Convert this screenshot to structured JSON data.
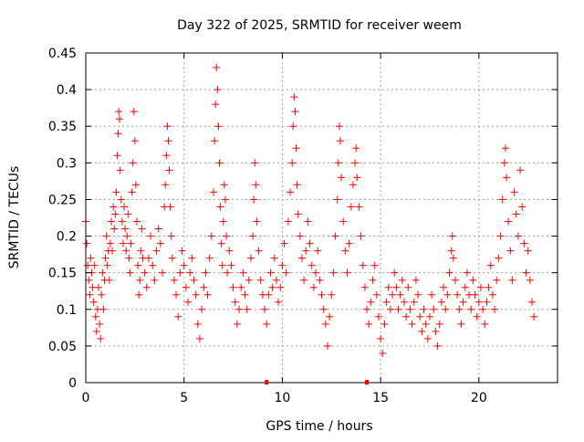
{
  "chart_data": {
    "type": "scatter",
    "title": "Day 322 of 2025, SRMTID for receiver weem",
    "xlabel": "GPS time / hours",
    "ylabel": "SRMTID / TECUs",
    "xlim": [
      0,
      24
    ],
    "ylim": [
      0,
      0.45
    ],
    "xticks": [
      0,
      5,
      10,
      15,
      20
    ],
    "xtick_labels": [
      "0",
      "5",
      "10",
      "15",
      "20"
    ],
    "yticks": [
      0,
      0.05,
      0.1,
      0.15,
      0.2,
      0.25,
      0.3,
      0.35,
      0.4,
      0.45
    ],
    "ytick_labels": [
      "0",
      "0.05",
      "0.1",
      "0.15",
      "0.2",
      "0.25",
      "0.3",
      "0.35",
      "0.4",
      "0.45"
    ],
    "grid": true,
    "marker": "+",
    "color": "#ff0000",
    "axis_markers_x": [
      9.2,
      14.3
    ],
    "series": [
      {
        "name": "SRMTID",
        "points": [
          [
            0.0,
            0.22
          ],
          [
            0.05,
            0.19
          ],
          [
            0.1,
            0.16
          ],
          [
            0.15,
            0.14
          ],
          [
            0.2,
            0.12
          ],
          [
            0.25,
            0.17
          ],
          [
            0.3,
            0.15
          ],
          [
            0.35,
            0.13
          ],
          [
            0.4,
            0.11
          ],
          [
            0.45,
            0.16
          ],
          [
            0.5,
            0.09
          ],
          [
            0.55,
            0.07
          ],
          [
            0.6,
            0.1
          ],
          [
            0.65,
            0.13
          ],
          [
            0.7,
            0.08
          ],
          [
            0.75,
            0.06
          ],
          [
            0.8,
            0.12
          ],
          [
            0.85,
            0.15
          ],
          [
            0.9,
            0.1
          ],
          [
            0.95,
            0.14
          ],
          [
            1.0,
            0.17
          ],
          [
            1.05,
            0.2
          ],
          [
            1.1,
            0.16
          ],
          [
            1.15,
            0.18
          ],
          [
            1.2,
            0.14
          ],
          [
            1.25,
            0.19
          ],
          [
            1.3,
            0.22
          ],
          [
            1.35,
            0.18
          ],
          [
            1.4,
            0.24
          ],
          [
            1.45,
            0.21
          ],
          [
            1.5,
            0.23
          ],
          [
            1.55,
            0.26
          ],
          [
            1.6,
            0.31
          ],
          [
            1.65,
            0.34
          ],
          [
            1.68,
            0.37
          ],
          [
            1.72,
            0.36
          ],
          [
            1.75,
            0.29
          ],
          [
            1.8,
            0.25
          ],
          [
            1.85,
            0.22
          ],
          [
            1.9,
            0.19
          ],
          [
            1.95,
            0.24
          ],
          [
            2.0,
            0.21
          ],
          [
            2.05,
            0.18
          ],
          [
            2.1,
            0.2
          ],
          [
            2.15,
            0.23
          ],
          [
            2.2,
            0.17
          ],
          [
            2.25,
            0.15
          ],
          [
            2.3,
            0.19
          ],
          [
            2.35,
            0.26
          ],
          [
            2.4,
            0.3
          ],
          [
            2.45,
            0.37
          ],
          [
            2.5,
            0.33
          ],
          [
            2.55,
            0.27
          ],
          [
            2.6,
            0.22
          ],
          [
            2.65,
            0.16
          ],
          [
            2.7,
            0.12
          ],
          [
            2.75,
            0.14
          ],
          [
            2.8,
            0.18
          ],
          [
            2.85,
            0.21
          ],
          [
            2.9,
            0.17
          ],
          [
            3.0,
            0.15
          ],
          [
            3.1,
            0.13
          ],
          [
            3.2,
            0.17
          ],
          [
            3.3,
            0.2
          ],
          [
            3.4,
            0.16
          ],
          [
            3.5,
            0.14
          ],
          [
            3.6,
            0.18
          ],
          [
            3.7,
            0.21
          ],
          [
            3.8,
            0.19
          ],
          [
            3.9,
            0.15
          ],
          [
            4.0,
            0.24
          ],
          [
            4.05,
            0.27
          ],
          [
            4.1,
            0.31
          ],
          [
            4.15,
            0.35
          ],
          [
            4.2,
            0.33
          ],
          [
            4.25,
            0.29
          ],
          [
            4.3,
            0.24
          ],
          [
            4.35,
            0.2
          ],
          [
            4.4,
            0.17
          ],
          [
            4.5,
            0.14
          ],
          [
            4.6,
            0.12
          ],
          [
            4.7,
            0.09
          ],
          [
            4.8,
            0.15
          ],
          [
            4.9,
            0.18
          ],
          [
            5.0,
            0.16
          ],
          [
            5.1,
            0.13
          ],
          [
            5.2,
            0.11
          ],
          [
            5.3,
            0.15
          ],
          [
            5.4,
            0.17
          ],
          [
            5.5,
            0.14
          ],
          [
            5.6,
            0.12
          ],
          [
            5.7,
            0.08
          ],
          [
            5.8,
            0.06
          ],
          [
            5.9,
            0.1
          ],
          [
            6.0,
            0.13
          ],
          [
            6.1,
            0.15
          ],
          [
            6.2,
            0.12
          ],
          [
            6.3,
            0.17
          ],
          [
            6.4,
            0.2
          ],
          [
            6.5,
            0.26
          ],
          [
            6.55,
            0.33
          ],
          [
            6.6,
            0.38
          ],
          [
            6.65,
            0.43
          ],
          [
            6.7,
            0.4
          ],
          [
            6.75,
            0.35
          ],
          [
            6.8,
            0.3
          ],
          [
            6.85,
            0.24
          ],
          [
            6.9,
            0.19
          ],
          [
            6.95,
            0.16
          ],
          [
            7.0,
            0.22
          ],
          [
            7.05,
            0.27
          ],
          [
            7.1,
            0.25
          ],
          [
            7.15,
            0.2
          ],
          [
            7.2,
            0.15
          ],
          [
            7.3,
            0.18
          ],
          [
            7.4,
            0.16
          ],
          [
            7.5,
            0.13
          ],
          [
            7.6,
            0.11
          ],
          [
            7.7,
            0.08
          ],
          [
            7.8,
            0.1
          ],
          [
            7.9,
            0.13
          ],
          [
            8.0,
            0.15
          ],
          [
            8.1,
            0.12
          ],
          [
            8.2,
            0.1
          ],
          [
            8.3,
            0.14
          ],
          [
            8.4,
            0.17
          ],
          [
            8.5,
            0.2
          ],
          [
            8.55,
            0.25
          ],
          [
            8.6,
            0.3
          ],
          [
            8.65,
            0.27
          ],
          [
            8.7,
            0.22
          ],
          [
            8.8,
            0.18
          ],
          [
            8.9,
            0.14
          ],
          [
            9.0,
            0.12
          ],
          [
            9.1,
            0.1
          ],
          [
            9.2,
            0.08
          ],
          [
            9.3,
            0.12
          ],
          [
            9.4,
            0.15
          ],
          [
            9.5,
            0.13
          ],
          [
            9.6,
            0.17
          ],
          [
            9.7,
            0.14
          ],
          [
            9.8,
            0.11
          ],
          [
            9.9,
            0.13
          ],
          [
            10.0,
            0.16
          ],
          [
            10.1,
            0.19
          ],
          [
            10.2,
            0.15
          ],
          [
            10.3,
            0.22
          ],
          [
            10.4,
            0.26
          ],
          [
            10.5,
            0.3
          ],
          [
            10.55,
            0.35
          ],
          [
            10.6,
            0.39
          ],
          [
            10.65,
            0.37
          ],
          [
            10.7,
            0.32
          ],
          [
            10.75,
            0.27
          ],
          [
            10.8,
            0.23
          ],
          [
            10.9,
            0.2
          ],
          [
            11.0,
            0.17
          ],
          [
            11.1,
            0.14
          ],
          [
            11.2,
            0.18
          ],
          [
            11.3,
            0.22
          ],
          [
            11.4,
            0.19
          ],
          [
            11.5,
            0.16
          ],
          [
            11.6,
            0.13
          ],
          [
            11.7,
            0.15
          ],
          [
            11.8,
            0.18
          ],
          [
            11.9,
            0.14
          ],
          [
            12.0,
            0.12
          ],
          [
            12.1,
            0.1
          ],
          [
            12.2,
            0.08
          ],
          [
            12.3,
            0.05
          ],
          [
            12.4,
            0.09
          ],
          [
            12.5,
            0.12
          ],
          [
            12.6,
            0.15
          ],
          [
            12.7,
            0.2
          ],
          [
            12.8,
            0.25
          ],
          [
            12.85,
            0.3
          ],
          [
            12.9,
            0.35
          ],
          [
            12.95,
            0.33
          ],
          [
            13.0,
            0.28
          ],
          [
            13.1,
            0.22
          ],
          [
            13.2,
            0.18
          ],
          [
            13.3,
            0.15
          ],
          [
            13.4,
            0.19
          ],
          [
            13.5,
            0.24
          ],
          [
            13.6,
            0.27
          ],
          [
            13.7,
            0.3
          ],
          [
            13.75,
            0.32
          ],
          [
            13.8,
            0.28
          ],
          [
            13.9,
            0.24
          ],
          [
            14.0,
            0.2
          ],
          [
            14.1,
            0.16
          ],
          [
            14.2,
            0.13
          ],
          [
            14.3,
            0.1
          ],
          [
            14.4,
            0.08
          ],
          [
            14.5,
            0.11
          ],
          [
            14.6,
            0.14
          ],
          [
            14.7,
            0.16
          ],
          [
            14.8,
            0.12
          ],
          [
            14.9,
            0.09
          ],
          [
            15.0,
            0.06
          ],
          [
            15.1,
            0.04
          ],
          [
            15.2,
            0.08
          ],
          [
            15.3,
            0.11
          ],
          [
            15.4,
            0.13
          ],
          [
            15.5,
            0.1
          ],
          [
            15.6,
            0.12
          ],
          [
            15.7,
            0.15
          ],
          [
            15.8,
            0.13
          ],
          [
            15.9,
            0.1
          ],
          [
            16.0,
            0.12
          ],
          [
            16.1,
            0.14
          ],
          [
            16.2,
            0.11
          ],
          [
            16.3,
            0.09
          ],
          [
            16.4,
            0.13
          ],
          [
            16.5,
            0.1
          ],
          [
            16.6,
            0.08
          ],
          [
            16.7,
            0.11
          ],
          [
            16.8,
            0.14
          ],
          [
            16.9,
            0.12
          ],
          [
            17.0,
            0.09
          ],
          [
            17.1,
            0.07
          ],
          [
            17.2,
            0.1
          ],
          [
            17.3,
            0.08
          ],
          [
            17.4,
            0.06
          ],
          [
            17.5,
            0.09
          ],
          [
            17.6,
            0.12
          ],
          [
            17.7,
            0.1
          ],
          [
            17.8,
            0.07
          ],
          [
            17.9,
            0.05
          ],
          [
            18.0,
            0.08
          ],
          [
            18.1,
            0.11
          ],
          [
            18.2,
            0.13
          ],
          [
            18.3,
            0.1
          ],
          [
            18.4,
            0.12
          ],
          [
            18.5,
            0.15
          ],
          [
            18.6,
            0.18
          ],
          [
            18.65,
            0.2
          ],
          [
            18.7,
            0.17
          ],
          [
            18.8,
            0.14
          ],
          [
            18.9,
            0.12
          ],
          [
            19.0,
            0.1
          ],
          [
            19.1,
            0.08
          ],
          [
            19.2,
            0.11
          ],
          [
            19.3,
            0.13
          ],
          [
            19.4,
            0.15
          ],
          [
            19.5,
            0.12
          ],
          [
            19.6,
            0.1
          ],
          [
            19.7,
            0.14
          ],
          [
            19.8,
            0.12
          ],
          [
            19.9,
            0.09
          ],
          [
            20.0,
            0.11
          ],
          [
            20.1,
            0.13
          ],
          [
            20.2,
            0.1
          ],
          [
            20.3,
            0.08
          ],
          [
            20.4,
            0.11
          ],
          [
            20.5,
            0.13
          ],
          [
            20.6,
            0.16
          ],
          [
            20.7,
            0.12
          ],
          [
            20.8,
            0.1
          ],
          [
            20.9,
            0.14
          ],
          [
            21.0,
            0.17
          ],
          [
            21.1,
            0.2
          ],
          [
            21.2,
            0.25
          ],
          [
            21.3,
            0.3
          ],
          [
            21.35,
            0.32
          ],
          [
            21.4,
            0.28
          ],
          [
            21.5,
            0.22
          ],
          [
            21.6,
            0.18
          ],
          [
            21.7,
            0.14
          ],
          [
            21.8,
            0.26
          ],
          [
            21.9,
            0.23
          ],
          [
            22.0,
            0.2
          ],
          [
            22.1,
            0.29
          ],
          [
            22.2,
            0.24
          ],
          [
            22.3,
            0.19
          ],
          [
            22.4,
            0.15
          ],
          [
            22.5,
            0.18
          ],
          [
            22.6,
            0.14
          ],
          [
            22.7,
            0.11
          ],
          [
            22.8,
            0.09
          ]
        ]
      }
    ]
  }
}
